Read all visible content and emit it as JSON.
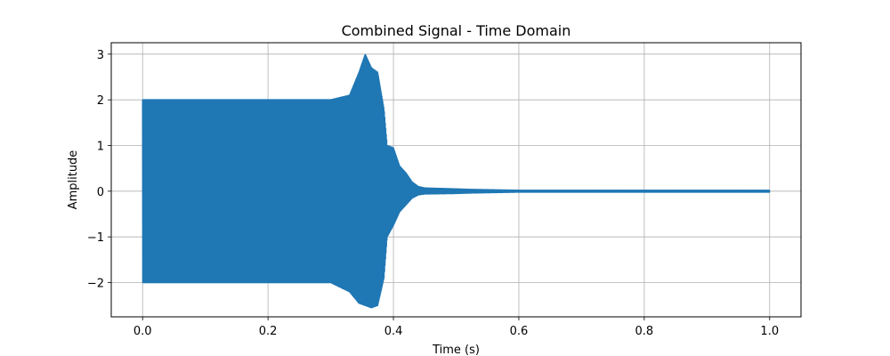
{
  "chart_data": {
    "type": "line",
    "title": "Combined Signal - Time Domain",
    "xlabel": "Time (s)",
    "ylabel": "Amplitude",
    "xlim": [
      -0.05,
      1.05
    ],
    "ylim": [
      -2.75,
      3.25
    ],
    "xticks": [
      0.0,
      0.2,
      0.4,
      0.6,
      0.8,
      1.0
    ],
    "xtick_labels": [
      "0.0",
      "0.2",
      "0.4",
      "0.6",
      "0.8",
      "1.0"
    ],
    "yticks": [
      -2,
      -1,
      0,
      1,
      2,
      3
    ],
    "ytick_labels": [
      "−2",
      "−1",
      "0",
      "1",
      "2",
      "3"
    ],
    "grid": true,
    "legend": false,
    "line_color": "#1f77b4",
    "series": [
      {
        "x": [
          0.0,
          0.05,
          0.1,
          0.15,
          0.2,
          0.25,
          0.3,
          0.33,
          0.345,
          0.355,
          0.365,
          0.375,
          0.385,
          0.39,
          0.4,
          0.41,
          0.42,
          0.43,
          0.44,
          0.45,
          0.5,
          0.52,
          0.6,
          0.7,
          0.77,
          0.8,
          0.9,
          1.0
        ],
        "upper": [
          2.0,
          2.0,
          2.0,
          2.0,
          2.0,
          2.0,
          2.0,
          2.1,
          2.6,
          3.0,
          2.7,
          2.6,
          1.8,
          1.0,
          0.95,
          0.55,
          0.4,
          0.2,
          0.1,
          0.07,
          0.05,
          0.04,
          0.02,
          0.02,
          0.02,
          0.02,
          0.02,
          0.02
        ],
        "lower": [
          -2.0,
          -2.0,
          -2.0,
          -2.0,
          -2.0,
          -2.0,
          -2.0,
          -2.2,
          -2.45,
          -2.5,
          -2.55,
          -2.5,
          -1.9,
          -1.0,
          -0.75,
          -0.45,
          -0.3,
          -0.15,
          -0.08,
          -0.06,
          -0.05,
          -0.04,
          -0.02,
          -0.02,
          -0.02,
          -0.02,
          -0.02,
          -0.02
        ]
      }
    ]
  }
}
